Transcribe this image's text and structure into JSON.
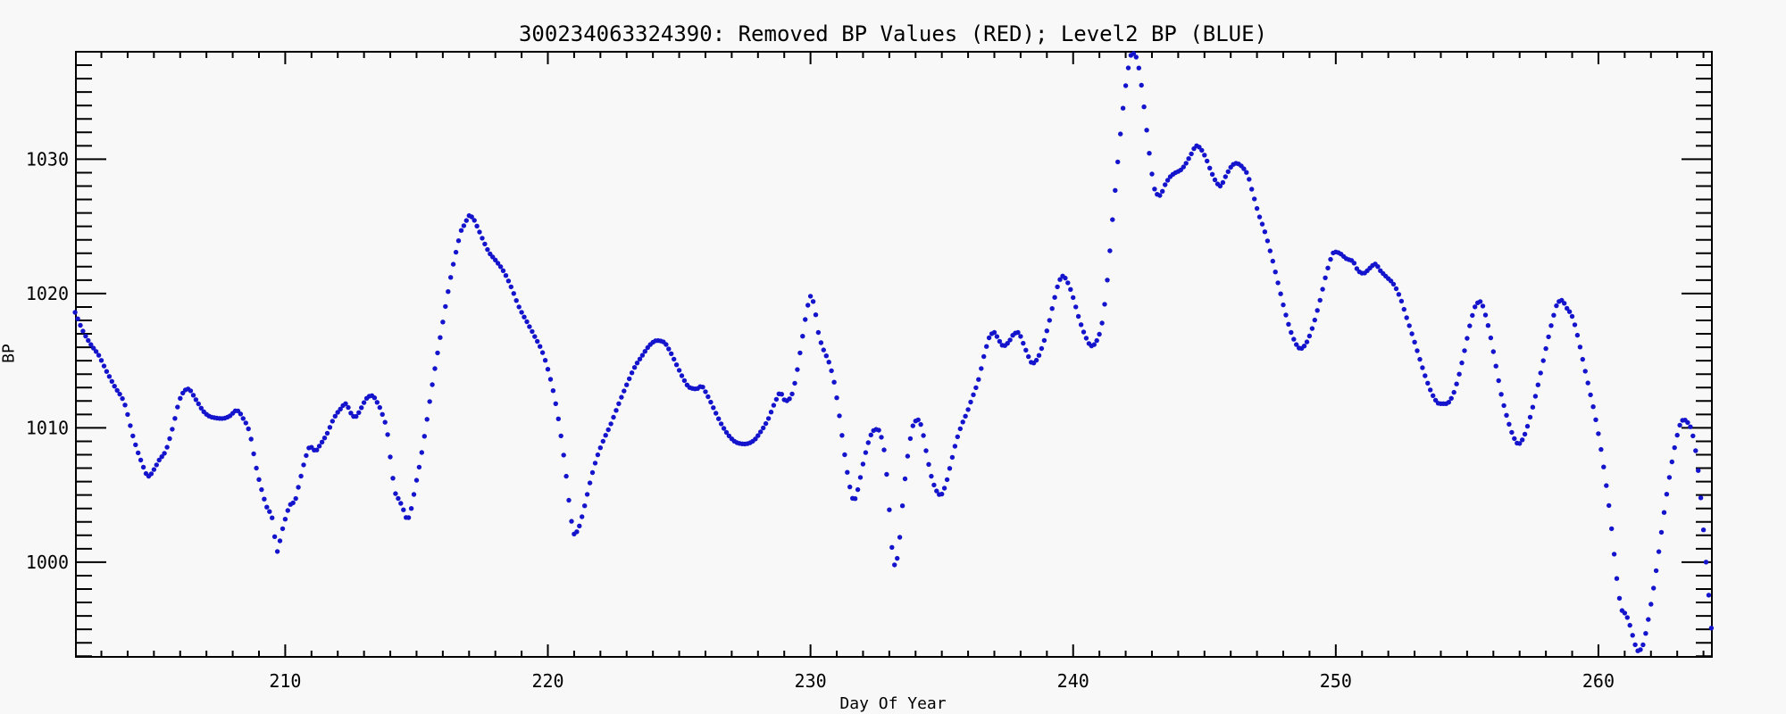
{
  "window": {
    "background": "#f8f8f8"
  },
  "chart_data": {
    "type": "scatter",
    "title": "300234063324390: Removed BP Values (RED); Level2 BP (BLUE)",
    "xlabel": "Day Of Year",
    "ylabel": "BP",
    "xlim": [
      202.03,
      264.32
    ],
    "ylim": [
      992.95,
      1038.0
    ],
    "x_major_ticks": [
      210,
      220,
      230,
      240,
      250,
      260
    ],
    "x_minor_step": 1,
    "y_major_ticks": [
      1000,
      1010,
      1020,
      1030
    ],
    "y_minor_step": 1,
    "grid": false,
    "legend_position": "none",
    "axis_color": "#000000",
    "series": [
      {
        "name": "Level2 BP (BLUE)",
        "color": "#1414cd",
        "marker": "filled-circle",
        "sample_step_days": 0.1,
        "anchors": [
          [
            202.0,
            1018.6
          ],
          [
            202.3,
            1017.2
          ],
          [
            202.6,
            1016.2
          ],
          [
            202.9,
            1015.4
          ],
          [
            203.2,
            1014.2
          ],
          [
            203.5,
            1013.1
          ],
          [
            203.9,
            1011.7
          ],
          [
            204.2,
            1009.4
          ],
          [
            204.5,
            1007.6
          ],
          [
            204.8,
            1006.4
          ],
          [
            205.0,
            1006.9
          ],
          [
            205.2,
            1007.6
          ],
          [
            205.45,
            1008.3
          ],
          [
            205.7,
            1009.9
          ],
          [
            206.0,
            1012.2
          ],
          [
            206.3,
            1012.9
          ],
          [
            206.6,
            1012.1
          ],
          [
            206.9,
            1011.2
          ],
          [
            207.2,
            1010.8
          ],
          [
            207.6,
            1010.7
          ],
          [
            207.9,
            1010.9
          ],
          [
            208.15,
            1011.3
          ],
          [
            208.4,
            1010.7
          ],
          [
            208.65,
            1009.6
          ],
          [
            208.9,
            1007.0
          ],
          [
            209.1,
            1005.4
          ],
          [
            209.3,
            1004.1
          ],
          [
            209.5,
            1003.3
          ],
          [
            209.6,
            1001.9
          ],
          [
            209.7,
            1000.8
          ],
          [
            209.85,
            1002.1
          ],
          [
            210.0,
            1003.2
          ],
          [
            210.2,
            1004.3
          ],
          [
            210.35,
            1004.5
          ],
          [
            210.55,
            1006.0
          ],
          [
            210.75,
            1007.6
          ],
          [
            210.95,
            1008.6
          ],
          [
            211.15,
            1008.3
          ],
          [
            211.35,
            1008.8
          ],
          [
            211.6,
            1009.6
          ],
          [
            211.85,
            1010.7
          ],
          [
            212.1,
            1011.4
          ],
          [
            212.3,
            1011.8
          ],
          [
            212.5,
            1011.1
          ],
          [
            212.65,
            1010.8
          ],
          [
            212.9,
            1011.5
          ],
          [
            213.1,
            1012.2
          ],
          [
            213.3,
            1012.4
          ],
          [
            213.5,
            1011.9
          ],
          [
            213.7,
            1011.0
          ],
          [
            213.9,
            1009.5
          ],
          [
            214.05,
            1007.0
          ],
          [
            214.2,
            1005.1
          ],
          [
            214.35,
            1004.6
          ],
          [
            214.5,
            1003.9
          ],
          [
            214.65,
            1003.2
          ],
          [
            214.8,
            1004.0
          ],
          [
            214.95,
            1005.6
          ],
          [
            215.15,
            1007.6
          ],
          [
            215.35,
            1010.0
          ],
          [
            215.55,
            1012.6
          ],
          [
            215.75,
            1015.0
          ],
          [
            215.95,
            1017.3
          ],
          [
            216.15,
            1019.6
          ],
          [
            216.35,
            1021.7
          ],
          [
            216.55,
            1023.5
          ],
          [
            216.7,
            1024.7
          ],
          [
            216.85,
            1025.2
          ],
          [
            217.0,
            1025.8
          ],
          [
            217.15,
            1025.6
          ],
          [
            217.35,
            1024.8
          ],
          [
            217.55,
            1023.9
          ],
          [
            217.75,
            1023.1
          ],
          [
            218.0,
            1022.5
          ],
          [
            218.3,
            1021.7
          ],
          [
            218.6,
            1020.5
          ],
          [
            218.9,
            1019.0
          ],
          [
            219.2,
            1017.9
          ],
          [
            219.5,
            1016.8
          ],
          [
            219.8,
            1015.6
          ],
          [
            220.05,
            1014.0
          ],
          [
            220.3,
            1011.8
          ],
          [
            220.5,
            1009.4
          ],
          [
            220.7,
            1006.4
          ],
          [
            220.85,
            1003.8
          ],
          [
            221.0,
            1002.1
          ],
          [
            221.2,
            1002.7
          ],
          [
            221.4,
            1004.2
          ],
          [
            221.6,
            1005.9
          ],
          [
            221.85,
            1007.7
          ],
          [
            222.1,
            1009.0
          ],
          [
            222.4,
            1010.3
          ],
          [
            222.7,
            1011.8
          ],
          [
            223.0,
            1013.2
          ],
          [
            223.3,
            1014.5
          ],
          [
            223.6,
            1015.4
          ],
          [
            223.9,
            1016.2
          ],
          [
            224.15,
            1016.5
          ],
          [
            224.4,
            1016.4
          ],
          [
            224.65,
            1015.7
          ],
          [
            224.9,
            1014.7
          ],
          [
            225.15,
            1013.7
          ],
          [
            225.4,
            1013.0
          ],
          [
            225.65,
            1012.9
          ],
          [
            225.85,
            1013.1
          ],
          [
            226.05,
            1012.5
          ],
          [
            226.3,
            1011.5
          ],
          [
            226.6,
            1010.3
          ],
          [
            226.9,
            1009.4
          ],
          [
            227.2,
            1008.9
          ],
          [
            227.5,
            1008.8
          ],
          [
            227.8,
            1009.0
          ],
          [
            228.1,
            1009.7
          ],
          [
            228.4,
            1010.7
          ],
          [
            228.65,
            1011.9
          ],
          [
            228.85,
            1012.6
          ],
          [
            229.05,
            1012.0
          ],
          [
            229.25,
            1012.3
          ],
          [
            229.45,
            1013.8
          ],
          [
            229.65,
            1016.2
          ],
          [
            229.85,
            1018.6
          ],
          [
            230.0,
            1019.8
          ],
          [
            230.15,
            1019.0
          ],
          [
            230.3,
            1017.1
          ],
          [
            230.5,
            1015.8
          ],
          [
            230.7,
            1014.9
          ],
          [
            230.9,
            1013.4
          ],
          [
            231.1,
            1010.9
          ],
          [
            231.3,
            1008.0
          ],
          [
            231.5,
            1005.6
          ],
          [
            231.65,
            1004.6
          ],
          [
            231.8,
            1005.4
          ],
          [
            232.0,
            1007.3
          ],
          [
            232.2,
            1008.9
          ],
          [
            232.4,
            1009.8
          ],
          [
            232.55,
            1009.9
          ],
          [
            232.7,
            1009.3
          ],
          [
            232.85,
            1007.6
          ],
          [
            233.0,
            1003.9
          ],
          [
            233.1,
            1001.1
          ],
          [
            233.2,
            999.8
          ],
          [
            233.35,
            1000.9
          ],
          [
            233.5,
            1004.2
          ],
          [
            233.65,
            1007.1
          ],
          [
            233.8,
            1009.2
          ],
          [
            233.95,
            1010.4
          ],
          [
            234.1,
            1010.6
          ],
          [
            234.25,
            1009.9
          ],
          [
            234.4,
            1008.3
          ],
          [
            234.6,
            1006.4
          ],
          [
            234.8,
            1005.3
          ],
          [
            234.95,
            1005.0
          ],
          [
            235.15,
            1005.8
          ],
          [
            235.35,
            1007.4
          ],
          [
            235.55,
            1009.0
          ],
          [
            235.75,
            1010.2
          ],
          [
            235.95,
            1011.1
          ],
          [
            236.15,
            1012.2
          ],
          [
            236.4,
            1013.6
          ],
          [
            236.65,
            1015.7
          ],
          [
            236.85,
            1016.9
          ],
          [
            237.0,
            1017.1
          ],
          [
            237.15,
            1016.6
          ],
          [
            237.35,
            1016.1
          ],
          [
            237.55,
            1016.4
          ],
          [
            237.75,
            1017.0
          ],
          [
            237.9,
            1017.1
          ],
          [
            238.1,
            1016.3
          ],
          [
            238.3,
            1015.3
          ],
          [
            238.45,
            1014.8
          ],
          [
            238.65,
            1015.2
          ],
          [
            238.85,
            1016.2
          ],
          [
            239.05,
            1017.6
          ],
          [
            239.25,
            1019.3
          ],
          [
            239.45,
            1020.8
          ],
          [
            239.6,
            1021.3
          ],
          [
            239.8,
            1020.8
          ],
          [
            240.0,
            1019.7
          ],
          [
            240.2,
            1018.3
          ],
          [
            240.45,
            1016.9
          ],
          [
            240.7,
            1016.1
          ],
          [
            240.9,
            1016.5
          ],
          [
            241.1,
            1017.8
          ],
          [
            241.3,
            1021.0
          ],
          [
            241.5,
            1025.5
          ],
          [
            241.7,
            1029.8
          ],
          [
            241.9,
            1033.8
          ],
          [
            242.1,
            1036.8
          ],
          [
            242.25,
            1037.9
          ],
          [
            242.4,
            1037.6
          ],
          [
            242.55,
            1036.2
          ],
          [
            242.7,
            1033.9
          ],
          [
            242.85,
            1031.3
          ],
          [
            243.0,
            1028.9
          ],
          [
            243.15,
            1027.5
          ],
          [
            243.3,
            1027.3
          ],
          [
            243.5,
            1028.1
          ],
          [
            243.7,
            1028.7
          ],
          [
            243.9,
            1029.0
          ],
          [
            244.1,
            1029.2
          ],
          [
            244.3,
            1029.7
          ],
          [
            244.5,
            1030.4
          ],
          [
            244.7,
            1031.0
          ],
          [
            244.85,
            1030.8
          ],
          [
            245.05,
            1030.1
          ],
          [
            245.25,
            1029.1
          ],
          [
            245.45,
            1028.3
          ],
          [
            245.6,
            1028.0
          ],
          [
            245.8,
            1028.7
          ],
          [
            246.0,
            1029.4
          ],
          [
            246.2,
            1029.7
          ],
          [
            246.45,
            1029.4
          ],
          [
            246.65,
            1028.8
          ],
          [
            246.85,
            1027.4
          ],
          [
            247.05,
            1026.0
          ],
          [
            247.3,
            1024.6
          ],
          [
            247.55,
            1022.8
          ],
          [
            247.8,
            1020.8
          ],
          [
            248.1,
            1018.4
          ],
          [
            248.4,
            1016.6
          ],
          [
            248.65,
            1015.9
          ],
          [
            248.9,
            1016.4
          ],
          [
            249.15,
            1017.7
          ],
          [
            249.4,
            1019.5
          ],
          [
            249.7,
            1021.9
          ],
          [
            249.95,
            1023.1
          ],
          [
            250.15,
            1023.0
          ],
          [
            250.4,
            1022.6
          ],
          [
            250.65,
            1022.4
          ],
          [
            250.85,
            1021.7
          ],
          [
            251.05,
            1021.5
          ],
          [
            251.3,
            1021.9
          ],
          [
            251.5,
            1022.2
          ],
          [
            251.7,
            1021.7
          ],
          [
            251.95,
            1021.2
          ],
          [
            252.2,
            1020.7
          ],
          [
            252.45,
            1019.7
          ],
          [
            252.7,
            1018.2
          ],
          [
            252.95,
            1016.7
          ],
          [
            253.2,
            1015.1
          ],
          [
            253.45,
            1013.6
          ],
          [
            253.7,
            1012.4
          ],
          [
            253.95,
            1011.8
          ],
          [
            254.2,
            1011.8
          ],
          [
            254.45,
            1012.4
          ],
          [
            254.7,
            1014.0
          ],
          [
            254.95,
            1016.2
          ],
          [
            255.15,
            1018.0
          ],
          [
            255.35,
            1019.2
          ],
          [
            255.5,
            1019.4
          ],
          [
            255.7,
            1018.4
          ],
          [
            255.9,
            1016.7
          ],
          [
            256.1,
            1014.6
          ],
          [
            256.3,
            1012.5
          ],
          [
            256.55,
            1010.6
          ],
          [
            256.8,
            1009.2
          ],
          [
            256.95,
            1008.8
          ],
          [
            257.15,
            1009.3
          ],
          [
            257.4,
            1010.8
          ],
          [
            257.7,
            1013.2
          ],
          [
            258.0,
            1015.9
          ],
          [
            258.25,
            1018.0
          ],
          [
            258.45,
            1019.3
          ],
          [
            258.6,
            1019.5
          ],
          [
            258.8,
            1018.9
          ],
          [
            259.0,
            1018.3
          ],
          [
            259.2,
            1016.9
          ],
          [
            259.4,
            1015.1
          ],
          [
            259.65,
            1012.9
          ],
          [
            259.85,
            1011.1
          ],
          [
            260.05,
            1009.0
          ],
          [
            260.25,
            1006.4
          ],
          [
            260.45,
            1003.4
          ],
          [
            260.6,
            1000.6
          ],
          [
            260.75,
            998.0
          ],
          [
            260.9,
            996.4
          ],
          [
            261.05,
            996.1
          ],
          [
            261.2,
            995.3
          ],
          [
            261.35,
            994.2
          ],
          [
            261.5,
            993.4
          ],
          [
            261.65,
            993.6
          ],
          [
            261.8,
            994.7
          ],
          [
            261.95,
            996.3
          ],
          [
            262.15,
            998.7
          ],
          [
            262.35,
            1001.5
          ],
          [
            262.55,
            1004.4
          ],
          [
            262.75,
            1006.9
          ],
          [
            262.95,
            1009.0
          ],
          [
            263.1,
            1010.2
          ],
          [
            263.25,
            1010.6
          ],
          [
            263.4,
            1010.4
          ],
          [
            263.55,
            1009.8
          ],
          [
            263.7,
            1008.3
          ],
          [
            263.85,
            1005.9
          ],
          [
            263.95,
            1003.6
          ],
          [
            264.05,
            1001.2
          ],
          [
            264.15,
            998.8
          ],
          [
            264.25,
            996.3
          ],
          [
            264.35,
            993.9
          ]
        ]
      },
      {
        "name": "Removed BP Values (RED)",
        "color": "#cc0000",
        "marker": "filled-circle",
        "anchors": []
      }
    ]
  }
}
